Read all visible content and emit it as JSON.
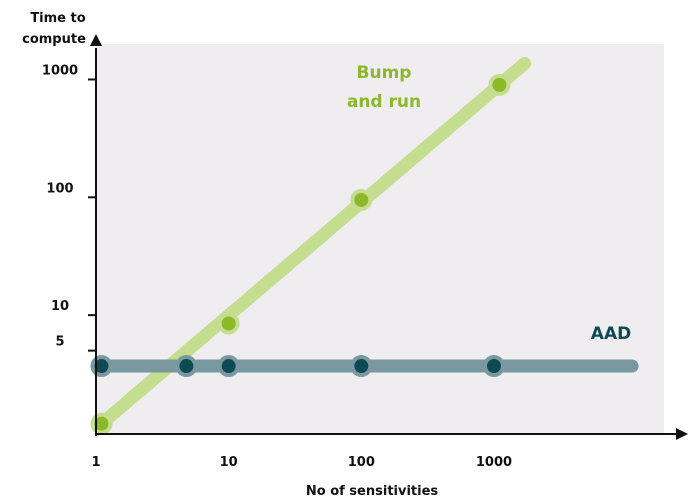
{
  "chart_data": {
    "type": "line",
    "title": "",
    "xlabel": "No of sensitivities",
    "ylabel": "Time to compute",
    "ylabel_lines": [
      "Time to",
      "compute"
    ],
    "x_scale": "log",
    "y_scale": "log",
    "x_ticks": [
      "1",
      "10",
      "100",
      "1000"
    ],
    "x_tick_values": [
      1,
      10,
      100,
      1000
    ],
    "y_ticks": [
      "5",
      "10",
      "100",
      "1000"
    ],
    "y_tick_values": [
      5,
      10,
      100,
      1000
    ],
    "xlim": [
      1,
      15000
    ],
    "ylim": [
      1,
      2000
    ],
    "grid": false,
    "series": [
      {
        "name": "Bump and run",
        "label_lines": [
          "Bump",
          "and run"
        ],
        "color": "#8cb82a",
        "line_color": "#c4dd8e",
        "line_x_end": 1700,
        "points": [
          {
            "x": 1.1,
            "y": 1.2
          },
          {
            "x": 10,
            "y": 8.5
          },
          {
            "x": 100,
            "y": 95
          },
          {
            "x": 1100,
            "y": 900
          }
        ]
      },
      {
        "name": "AAD",
        "label_lines": [
          "AAD"
        ],
        "color": "#0d4a54",
        "line_color": "#7a98a0",
        "line_x_end": 11000,
        "points": [
          {
            "x": 1.1,
            "y": 3.7
          },
          {
            "x": 4.8,
            "y": 3.7
          },
          {
            "x": 10,
            "y": 3.7
          },
          {
            "x": 100,
            "y": 3.7
          },
          {
            "x": 1000,
            "y": 3.7
          }
        ]
      }
    ]
  }
}
